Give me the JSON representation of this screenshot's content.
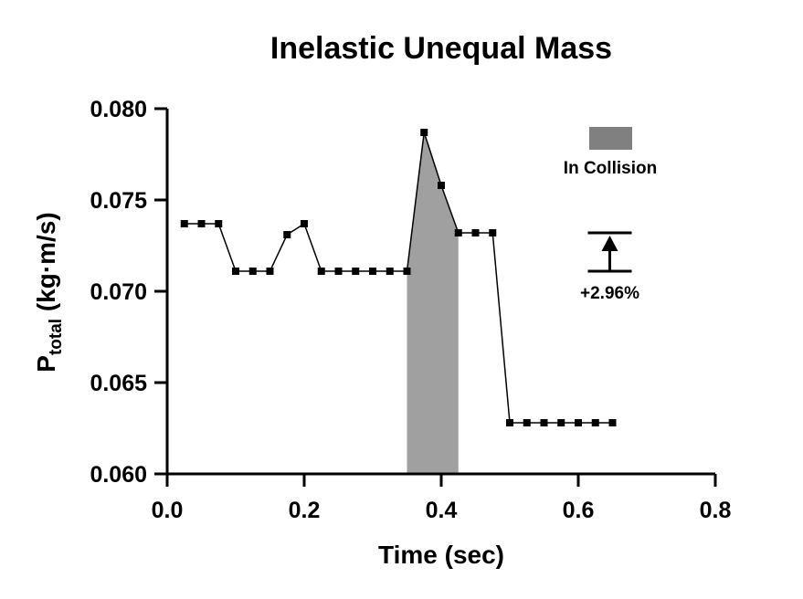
{
  "chart_data": {
    "type": "line",
    "title": "Inelastic Unequal Mass",
    "xlabel": "Time (sec)",
    "ylabel": {
      "main": "P",
      "subscript": "total",
      "suffix": " (kg·m/s)"
    },
    "xlim": [
      0,
      0.8
    ],
    "ylim": [
      0.06,
      0.08
    ],
    "x_ticks": [
      0.0,
      0.2,
      0.4,
      0.6,
      0.8
    ],
    "x_tick_labels": [
      "0.0",
      "0.2",
      "0.4",
      "0.6",
      "0.8"
    ],
    "y_ticks": [
      0.06,
      0.065,
      0.07,
      0.075,
      0.08
    ],
    "y_tick_labels": [
      "0.060",
      "0.065",
      "0.070",
      "0.075",
      "0.080"
    ],
    "grid": false,
    "series": [
      {
        "x": [
          0.025,
          0.05,
          0.075,
          0.1,
          0.125,
          0.15,
          0.175,
          0.2,
          0.225,
          0.25,
          0.275,
          0.3,
          0.325,
          0.35,
          0.375,
          0.4,
          0.425,
          0.45,
          0.475,
          0.5,
          0.525,
          0.55,
          0.575,
          0.6,
          0.625,
          0.65
        ],
        "y": [
          0.0737,
          0.0737,
          0.0737,
          0.0711,
          0.0711,
          0.0711,
          0.0731,
          0.0737,
          0.0711,
          0.0711,
          0.0711,
          0.0711,
          0.0711,
          0.0711,
          0.0787,
          0.0758,
          0.0732,
          0.0732,
          0.0732,
          0.0628,
          0.0628,
          0.0628,
          0.0628,
          0.0628,
          0.0628,
          0.0628
        ],
        "color": "#000000",
        "marker": "square"
      }
    ],
    "collision_region": {
      "x_start": 0.35,
      "x_end": 0.425,
      "color": "#a0a0a0"
    },
    "legend": {
      "label": "In Collision",
      "color": "#808080",
      "position": "top-right"
    },
    "annotation": {
      "label": "+2.96%",
      "y_low": 0.0711,
      "y_high": 0.0732,
      "x": 0.646
    }
  }
}
